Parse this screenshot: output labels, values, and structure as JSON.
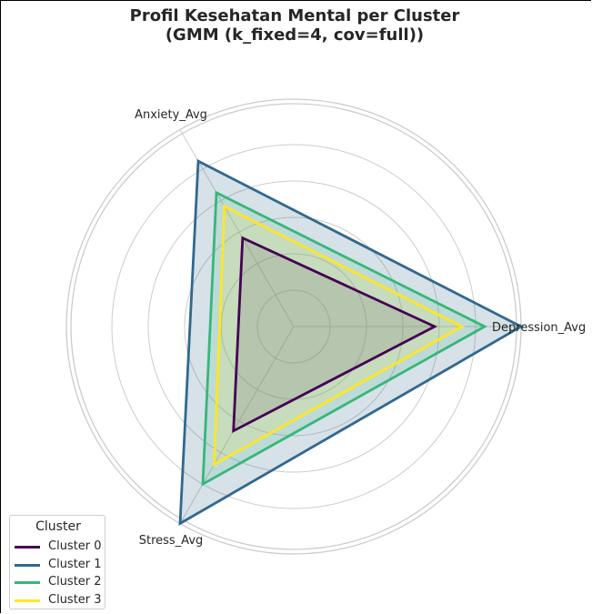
{
  "chart_data": {
    "type": "radar",
    "title": "Profil Kesehatan Mental per Cluster\n(GMM (k_fixed=4, cov=full))",
    "axes": [
      "Depression_Avg",
      "Anxiety_Avg",
      "Stress_Avg"
    ],
    "rlim": [
      0,
      10
    ],
    "grid": true,
    "legend": {
      "title": "Cluster",
      "placement": "bottom-left"
    },
    "series": [
      {
        "name": "Cluster 0",
        "values": [
          6.2,
          4.5,
          5.3
        ],
        "color": "#440154"
      },
      {
        "name": "Cluster 1",
        "values": [
          10.0,
          8.4,
          10.0
        ],
        "color": "#31688e"
      },
      {
        "name": "Cluster 2",
        "values": [
          8.4,
          6.8,
          8.0
        ],
        "color": "#35b779"
      },
      {
        "name": "Cluster 3",
        "values": [
          7.4,
          6.1,
          7.0
        ],
        "color": "#fde725"
      }
    ],
    "grid_color": "#cccccc",
    "fill_color": "#31688e"
  }
}
